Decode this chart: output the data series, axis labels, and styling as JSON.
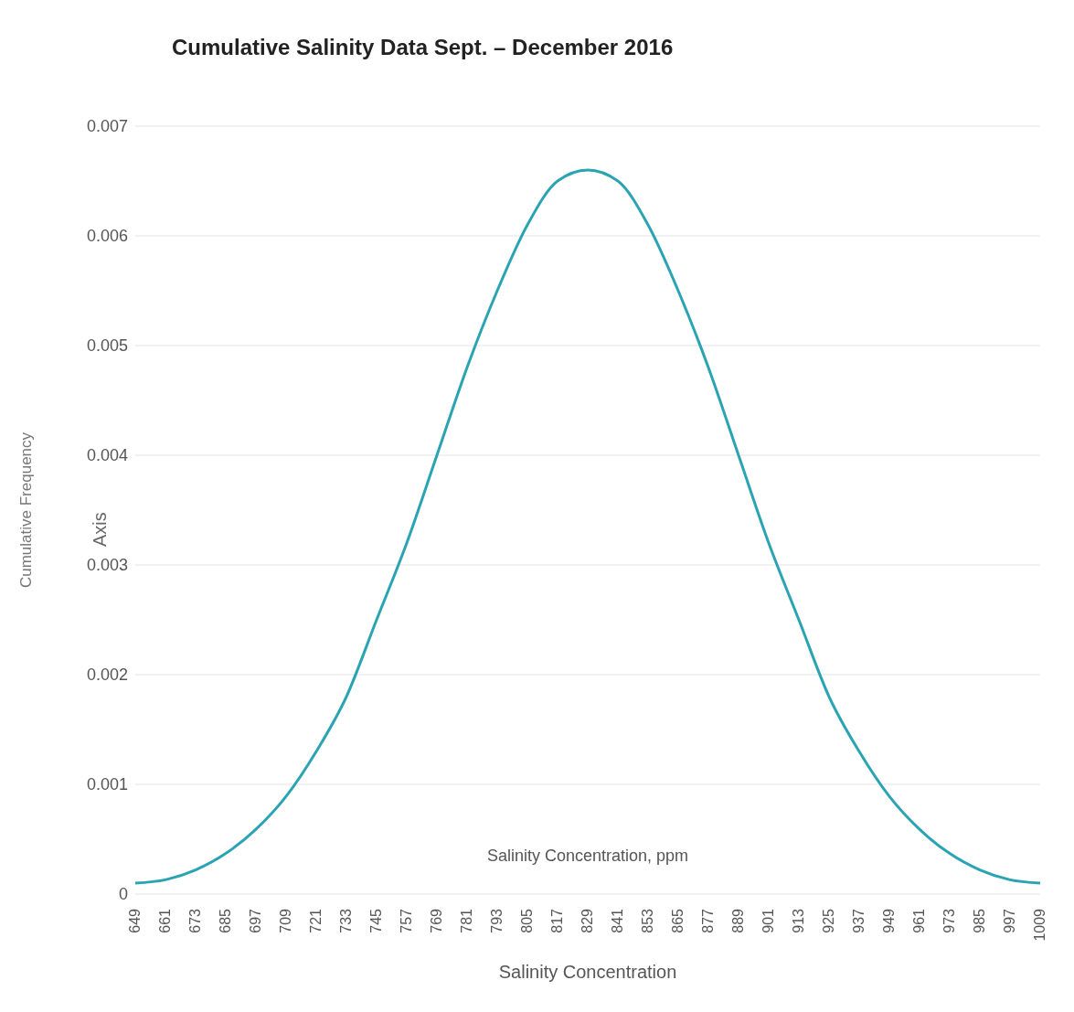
{
  "chart_data": {
    "type": "line",
    "title": "Cumulative Salinity Data Sept. – December 2016",
    "xlabel": "Salinity Concentration",
    "ylabel": "Cumulative Frequency",
    "annotations": [
      "Salinity Concentration, ppm",
      "Axis"
    ],
    "x": [
      649,
      661,
      673,
      685,
      697,
      709,
      721,
      733,
      745,
      757,
      769,
      781,
      793,
      805,
      817,
      829,
      841,
      853,
      865,
      877,
      889,
      901,
      913,
      925,
      937,
      949,
      961,
      973,
      985,
      997,
      1009
    ],
    "series": [
      {
        "color": "#2aa3b3",
        "values": [
          0.0001,
          0.00013,
          0.00022,
          0.00037,
          0.00059,
          0.00089,
          0.0013,
          0.0018,
          0.0025,
          0.0032,
          0.004,
          0.0048,
          0.0055,
          0.0061,
          0.0065,
          0.0066,
          0.0065,
          0.0061,
          0.0055,
          0.0048,
          0.004,
          0.0032,
          0.0025,
          0.0018,
          0.0013,
          0.00089,
          0.00059,
          0.00037,
          0.00022,
          0.00013,
          0.0001
        ]
      }
    ],
    "xlim": [
      649,
      1009
    ],
    "xticks": [
      649,
      661,
      673,
      685,
      697,
      709,
      721,
      733,
      745,
      757,
      769,
      781,
      793,
      805,
      817,
      829,
      841,
      853,
      865,
      877,
      889,
      901,
      913,
      925,
      937,
      949,
      961,
      973,
      985,
      997,
      1009
    ],
    "ylim": [
      0,
      0.007
    ],
    "yticks": [
      0,
      0.001,
      0.002,
      0.003,
      0.004,
      0.005,
      0.006,
      0.007
    ],
    "grid": "y",
    "marker": "none",
    "line_style": "solid"
  }
}
